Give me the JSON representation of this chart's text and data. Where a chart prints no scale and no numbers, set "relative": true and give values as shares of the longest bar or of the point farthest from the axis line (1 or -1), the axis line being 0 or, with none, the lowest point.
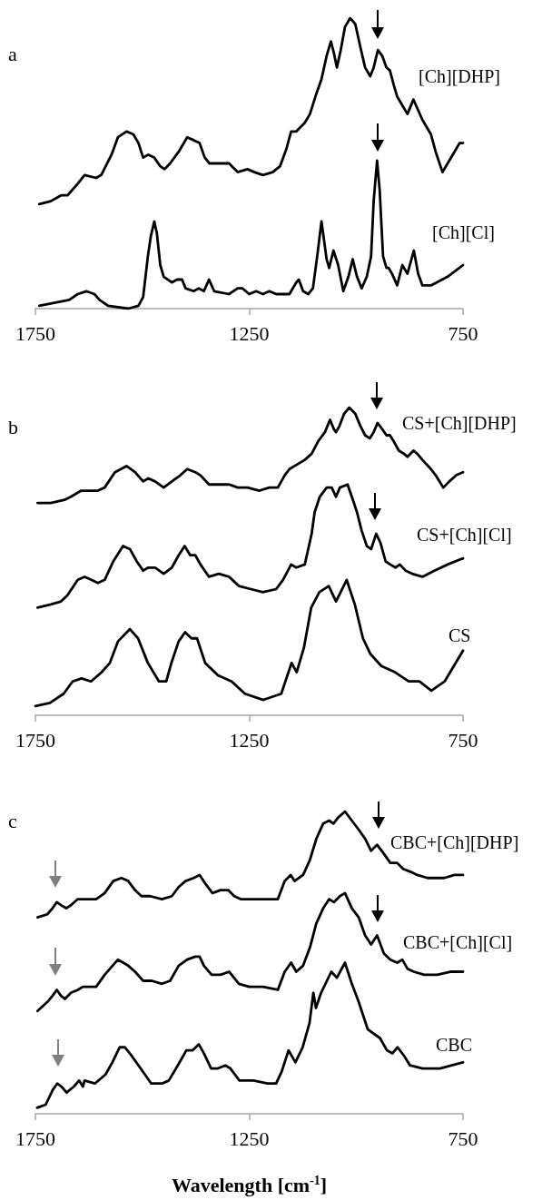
{
  "chart_data": [
    {
      "type": "line",
      "title": "a",
      "relative": true,
      "xlim": [
        1750,
        750
      ],
      "xticks": [
        1750,
        1250,
        750
      ],
      "tick_labels": "x",
      "marker": "none",
      "line_style": "solid",
      "series": [
        {
          "name": "[Ch][DHP]",
          "color": "#000000",
          "x": [
            1741,
            1714,
            1690,
            1675,
            1651,
            1635,
            1608,
            1596,
            1572,
            1557,
            1537,
            1521,
            1509,
            1498,
            1486,
            1472,
            1458,
            1448,
            1435,
            1415,
            1395,
            1380,
            1366,
            1354,
            1343,
            1321,
            1297,
            1277,
            1254,
            1238,
            1218,
            1195,
            1178,
            1163,
            1152,
            1140,
            1120,
            1108,
            1093,
            1081,
            1069,
            1059,
            1052,
            1045,
            1036,
            1026,
            1014,
            1002,
            990,
            979,
            967,
            959,
            949,
            939,
            929,
            921,
            912,
            904,
            892,
            880,
            866,
            857,
            845,
            825,
            814,
            798,
            786,
            770,
            758,
            750
          ],
          "values": [
            0.36,
            0.37,
            0.39,
            0.39,
            0.43,
            0.46,
            0.45,
            0.46,
            0.53,
            0.59,
            0.61,
            0.6,
            0.57,
            0.52,
            0.53,
            0.52,
            0.49,
            0.48,
            0.5,
            0.54,
            0.59,
            0.58,
            0.57,
            0.52,
            0.5,
            0.5,
            0.5,
            0.47,
            0.48,
            0.47,
            0.46,
            0.47,
            0.49,
            0.55,
            0.61,
            0.61,
            0.64,
            0.67,
            0.74,
            0.79,
            0.87,
            0.92,
            0.88,
            0.83,
            0.89,
            0.97,
            1.0,
            0.98,
            0.9,
            0.83,
            0.8,
            0.83,
            0.89,
            0.87,
            0.83,
            0.82,
            0.77,
            0.73,
            0.7,
            0.67,
            0.72,
            0.69,
            0.65,
            0.6,
            0.54,
            0.47,
            0.5,
            0.54,
            0.57,
            0.57
          ]
        },
        {
          "name": "[Ch][Cl]",
          "color": "#000000",
          "x": [
            1741,
            1706,
            1671,
            1651,
            1631,
            1612,
            1600,
            1580,
            1533,
            1509,
            1498,
            1487,
            1480,
            1472,
            1466,
            1458,
            1450,
            1431,
            1419,
            1407,
            1399,
            1380,
            1368,
            1356,
            1344,
            1332,
            1297,
            1277,
            1266,
            1250,
            1234,
            1218,
            1203,
            1187,
            1156,
            1140,
            1134,
            1124,
            1112,
            1101,
            1091,
            1081,
            1069,
            1063,
            1053,
            1042,
            1030,
            1018,
            1008,
            998,
            987,
            975,
            965,
            959,
            951,
            945,
            937,
            929,
            924,
            916,
            904,
            892,
            880,
            865,
            855,
            845,
            825,
            786,
            750
          ],
          "values": [
            0.01,
            0.02,
            0.03,
            0.05,
            0.06,
            0.05,
            0.03,
            0.01,
            0.0,
            0.01,
            0.04,
            0.18,
            0.25,
            0.3,
            0.26,
            0.15,
            0.11,
            0.09,
            0.1,
            0.1,
            0.07,
            0.06,
            0.07,
            0.06,
            0.1,
            0.06,
            0.05,
            0.07,
            0.07,
            0.05,
            0.06,
            0.05,
            0.06,
            0.05,
            0.05,
            0.09,
            0.1,
            0.06,
            0.05,
            0.07,
            0.18,
            0.3,
            0.17,
            0.14,
            0.2,
            0.15,
            0.06,
            0.11,
            0.17,
            0.11,
            0.07,
            0.11,
            0.18,
            0.37,
            0.51,
            0.41,
            0.18,
            0.14,
            0.14,
            0.12,
            0.08,
            0.15,
            0.12,
            0.2,
            0.12,
            0.08,
            0.08,
            0.11,
            0.15
          ]
        }
      ]
    },
    {
      "type": "line",
      "title": "b",
      "relative": true,
      "xlim": [
        1750,
        750
      ],
      "xticks": [
        1750,
        1250,
        750
      ],
      "tick_labels": "x",
      "marker": "none",
      "line_style": "solid",
      "series": [
        {
          "name": "CS+[Ch][DHP]",
          "color": "#000000",
          "x": [
            1745,
            1714,
            1682,
            1667,
            1643,
            1627,
            1604,
            1588,
            1564,
            1537,
            1517,
            1498,
            1486,
            1470,
            1450,
            1431,
            1411,
            1395,
            1376,
            1364,
            1344,
            1321,
            1297,
            1277,
            1254,
            1226,
            1203,
            1183,
            1167,
            1156,
            1144,
            1120,
            1104,
            1089,
            1073,
            1061,
            1052,
            1047,
            1039,
            1028,
            1016,
            1002,
            990,
            979,
            968,
            959,
            950,
            939,
            929,
            921,
            912,
            900,
            888,
            880,
            866,
            857,
            845,
            825,
            814,
            796,
            782,
            766,
            750
          ],
          "values": [
            0.69,
            0.69,
            0.7,
            0.71,
            0.73,
            0.73,
            0.73,
            0.74,
            0.79,
            0.81,
            0.79,
            0.76,
            0.77,
            0.76,
            0.74,
            0.76,
            0.78,
            0.8,
            0.79,
            0.78,
            0.75,
            0.75,
            0.75,
            0.74,
            0.74,
            0.73,
            0.74,
            0.74,
            0.78,
            0.8,
            0.81,
            0.83,
            0.85,
            0.89,
            0.92,
            0.96,
            0.93,
            0.92,
            0.94,
            0.98,
            1.0,
            0.98,
            0.94,
            0.91,
            0.9,
            0.92,
            0.95,
            0.93,
            0.91,
            0.91,
            0.89,
            0.86,
            0.85,
            0.84,
            0.86,
            0.85,
            0.83,
            0.8,
            0.78,
            0.74,
            0.76,
            0.78,
            0.79
          ]
        },
        {
          "name": "CS+[Ch][Cl]",
          "color": "#000000",
          "x": [
            1745,
            1714,
            1690,
            1675,
            1651,
            1635,
            1619,
            1604,
            1588,
            1568,
            1545,
            1529,
            1513,
            1498,
            1486,
            1470,
            1450,
            1431,
            1415,
            1401,
            1388,
            1376,
            1364,
            1344,
            1321,
            1297,
            1274,
            1246,
            1218,
            1187,
            1171,
            1152,
            1140,
            1120,
            1104,
            1097,
            1085,
            1069,
            1057,
            1047,
            1038,
            1020,
            1010,
            998,
            987,
            975,
            965,
            953,
            943,
            931,
            920,
            908,
            898,
            884,
            869,
            845,
            817,
            786,
            750
          ],
          "values": [
            0.35,
            0.36,
            0.37,
            0.39,
            0.44,
            0.45,
            0.44,
            0.43,
            0.44,
            0.5,
            0.55,
            0.54,
            0.5,
            0.47,
            0.48,
            0.48,
            0.46,
            0.48,
            0.52,
            0.55,
            0.52,
            0.52,
            0.49,
            0.45,
            0.46,
            0.45,
            0.42,
            0.41,
            0.4,
            0.41,
            0.44,
            0.49,
            0.48,
            0.49,
            0.59,
            0.66,
            0.71,
            0.74,
            0.74,
            0.71,
            0.74,
            0.75,
            0.71,
            0.66,
            0.6,
            0.55,
            0.54,
            0.59,
            0.56,
            0.5,
            0.49,
            0.48,
            0.49,
            0.47,
            0.46,
            0.45,
            0.47,
            0.49,
            0.51
          ]
        },
        {
          "name": "CS",
          "color": "#000000",
          "x": [
            1750,
            1716,
            1684,
            1663,
            1642,
            1620,
            1595,
            1576,
            1557,
            1529,
            1510,
            1487,
            1461,
            1444,
            1432,
            1415,
            1400,
            1385,
            1372,
            1353,
            1323,
            1291,
            1260,
            1217,
            1175,
            1151,
            1139,
            1122,
            1105,
            1086,
            1064,
            1047,
            1022,
            1003,
            984,
            967,
            941,
            909,
            877,
            852,
            824,
            793,
            750
          ],
          "values": [
            0.03,
            0.04,
            0.07,
            0.11,
            0.12,
            0.11,
            0.14,
            0.17,
            0.24,
            0.28,
            0.25,
            0.17,
            0.11,
            0.11,
            0.17,
            0.24,
            0.27,
            0.25,
            0.25,
            0.17,
            0.13,
            0.11,
            0.07,
            0.05,
            0.07,
            0.17,
            0.14,
            0.22,
            0.35,
            0.4,
            0.42,
            0.37,
            0.44,
            0.36,
            0.25,
            0.2,
            0.16,
            0.14,
            0.11,
            0.11,
            0.08,
            0.11,
            0.21
          ]
        }
      ]
    },
    {
      "type": "line",
      "title": "c",
      "xlabel": "Wavelength [cm$^{-1}$]",
      "relative": true,
      "xlim": [
        1750,
        750
      ],
      "xticks": [
        1750,
        1250,
        750
      ],
      "tick_labels": "x",
      "marker": "none",
      "line_style": "solid",
      "series": [
        {
          "name": "CBC+[Ch][DHP]",
          "color": "#000000",
          "x": [
            1745,
            1722,
            1710,
            1700,
            1690,
            1678,
            1667,
            1651,
            1627,
            1608,
            1588,
            1568,
            1549,
            1533,
            1517,
            1502,
            1482,
            1454,
            1431,
            1415,
            1399,
            1380,
            1366,
            1352,
            1336,
            1317,
            1299,
            1285,
            1270,
            1242,
            1211,
            1183,
            1167,
            1153,
            1144,
            1124,
            1108,
            1093,
            1077,
            1063,
            1053,
            1042,
            1026,
            1010,
            994,
            979,
            965,
            951,
            935,
            920,
            904,
            890,
            872,
            857,
            833,
            794,
            770,
            750
          ],
          "values": [
            0.65,
            0.66,
            0.68,
            0.7,
            0.69,
            0.68,
            0.69,
            0.71,
            0.71,
            0.71,
            0.73,
            0.77,
            0.78,
            0.77,
            0.74,
            0.72,
            0.72,
            0.71,
            0.72,
            0.75,
            0.77,
            0.78,
            0.79,
            0.76,
            0.73,
            0.74,
            0.74,
            0.72,
            0.71,
            0.71,
            0.71,
            0.71,
            0.77,
            0.79,
            0.77,
            0.79,
            0.84,
            0.91,
            0.96,
            0.97,
            0.96,
            0.98,
            1.0,
            0.97,
            0.94,
            0.91,
            0.87,
            0.89,
            0.86,
            0.83,
            0.83,
            0.81,
            0.8,
            0.79,
            0.78,
            0.78,
            0.79,
            0.79
          ]
        },
        {
          "name": "CBC+[Ch][Cl]",
          "color": "#000000",
          "x": [
            1745,
            1722,
            1710,
            1700,
            1690,
            1681,
            1667,
            1651,
            1639,
            1608,
            1588,
            1557,
            1533,
            1517,
            1498,
            1478,
            1454,
            1435,
            1415,
            1395,
            1376,
            1366,
            1356,
            1338,
            1317,
            1297,
            1274,
            1250,
            1218,
            1183,
            1167,
            1152,
            1140,
            1124,
            1108,
            1093,
            1077,
            1063,
            1052,
            1038,
            1026,
            1010,
            994,
            979,
            965,
            951,
            935,
            920,
            904,
            892,
            880,
            865,
            841,
            810,
            778,
            750
          ],
          "values": [
            0.34,
            0.37,
            0.39,
            0.41,
            0.39,
            0.38,
            0.4,
            0.41,
            0.42,
            0.42,
            0.46,
            0.51,
            0.49,
            0.47,
            0.44,
            0.44,
            0.43,
            0.44,
            0.49,
            0.51,
            0.52,
            0.52,
            0.49,
            0.46,
            0.46,
            0.47,
            0.43,
            0.42,
            0.42,
            0.41,
            0.47,
            0.5,
            0.47,
            0.49,
            0.55,
            0.63,
            0.68,
            0.71,
            0.7,
            0.72,
            0.73,
            0.68,
            0.65,
            0.59,
            0.56,
            0.59,
            0.53,
            0.51,
            0.5,
            0.51,
            0.48,
            0.47,
            0.46,
            0.46,
            0.47,
            0.47
          ]
        },
        {
          "name": "CBC",
          "color": "#000000",
          "x": [
            1746,
            1726,
            1709,
            1699,
            1689,
            1677,
            1660,
            1648,
            1639,
            1635,
            1611,
            1586,
            1570,
            1553,
            1541,
            1524,
            1504,
            1479,
            1454,
            1438,
            1417,
            1397,
            1382,
            1368,
            1356,
            1339,
            1323,
            1306,
            1294,
            1273,
            1240,
            1207,
            1187,
            1174,
            1158,
            1142,
            1125,
            1109,
            1100,
            1094,
            1082,
            1058,
            1045,
            1026,
            1010,
            994,
            973,
            944,
            928,
            915,
            903,
            887,
            874,
            845,
            804,
            750
          ],
          "values": [
            0.02,
            0.03,
            0.08,
            0.1,
            0.09,
            0.07,
            0.09,
            0.11,
            0.09,
            0.11,
            0.1,
            0.13,
            0.17,
            0.22,
            0.22,
            0.19,
            0.15,
            0.1,
            0.1,
            0.11,
            0.16,
            0.21,
            0.21,
            0.23,
            0.2,
            0.15,
            0.15,
            0.16,
            0.15,
            0.11,
            0.11,
            0.1,
            0.1,
            0.14,
            0.21,
            0.17,
            0.22,
            0.3,
            0.4,
            0.35,
            0.4,
            0.47,
            0.45,
            0.5,
            0.43,
            0.37,
            0.28,
            0.25,
            0.21,
            0.2,
            0.22,
            0.19,
            0.16,
            0.15,
            0.15,
            0.17
          ]
        }
      ]
    }
  ]
}
